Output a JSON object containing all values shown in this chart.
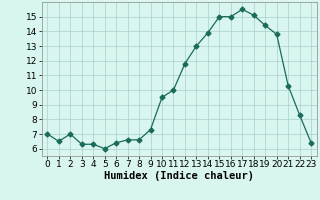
{
  "x": [
    0,
    1,
    2,
    3,
    4,
    5,
    6,
    7,
    8,
    9,
    10,
    11,
    12,
    13,
    14,
    15,
    16,
    17,
    18,
    19,
    20,
    21,
    22,
    23
  ],
  "y": [
    7.0,
    6.5,
    7.0,
    6.3,
    6.3,
    6.0,
    6.4,
    6.6,
    6.6,
    7.3,
    9.5,
    10.0,
    11.8,
    13.0,
    13.9,
    15.0,
    15.0,
    15.5,
    15.1,
    14.4,
    13.8,
    10.3,
    8.3,
    6.4
  ],
  "line_color": "#1a6b5a",
  "marker": "D",
  "marker_size": 2.5,
  "bg_color": "#d8f5f0",
  "grid_color": "#a8cfc8",
  "xlabel": "Humidex (Indice chaleur)",
  "xlim": [
    -0.5,
    23.5
  ],
  "ylim": [
    5.5,
    16.0
  ],
  "yticks": [
    6,
    7,
    8,
    9,
    10,
    11,
    12,
    13,
    14,
    15
  ],
  "xticks": [
    0,
    1,
    2,
    3,
    4,
    5,
    6,
    7,
    8,
    9,
    10,
    11,
    12,
    13,
    14,
    15,
    16,
    17,
    18,
    19,
    20,
    21,
    22,
    23
  ],
  "xlabel_fontsize": 7.5,
  "tick_fontsize": 6.5
}
